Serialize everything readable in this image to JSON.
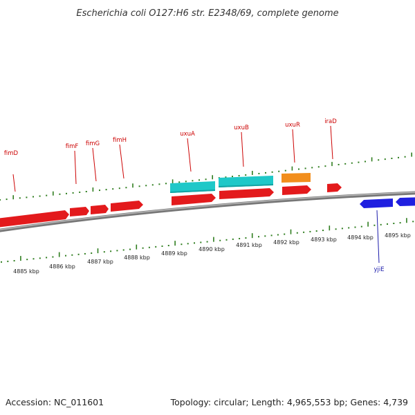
{
  "title": "Escherichia coli O127:H6 str. E2348/69, complete genome",
  "footer": {
    "accession": "Accession: NC_011601",
    "summary": "Topology: circular; Length: 4,965,553 bp; Genes: 4,739"
  },
  "colors": {
    "backbone": "#8a8a8a",
    "tick": "#2e7d1e",
    "forward_gene": "#e31a1c",
    "reverse_gene": "#1f1fe0",
    "cyan_feature": "#1fc8c8",
    "orange_feature": "#f28e1c",
    "forward_label": "#cc0000",
    "reverse_label": "#1a1aaa"
  },
  "map": {
    "ticks": [
      {
        "label": "4885 kbp"
      },
      {
        "label": "4886 kbp"
      },
      {
        "label": "4887 kbp"
      },
      {
        "label": "4888 kbp"
      },
      {
        "label": "4889 kbp"
      },
      {
        "label": "4890 kbp"
      },
      {
        "label": "4891 kbp"
      },
      {
        "label": "4892 kbp"
      },
      {
        "label": "4893 kbp"
      },
      {
        "label": "4894 kbp"
      },
      {
        "label": "4895 kbp"
      }
    ],
    "forward_gene_labels": [
      "fimD",
      "fimF",
      "fimG",
      "fimH",
      "uxuA",
      "uxuB",
      "uxuR",
      "iraD"
    ],
    "reverse_gene_labels": [
      "yjiE"
    ]
  }
}
